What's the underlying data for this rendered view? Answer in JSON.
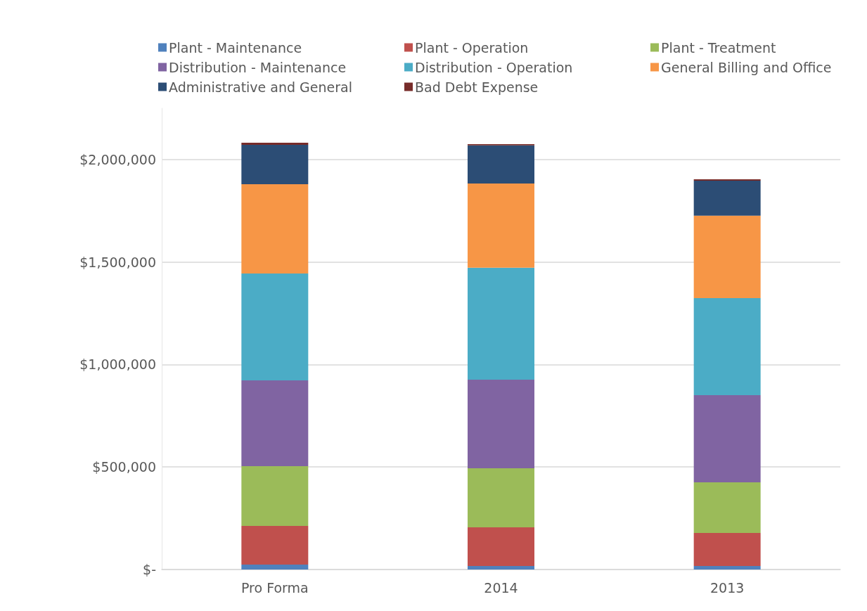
{
  "chart_data": {
    "type": "bar",
    "stacked": true,
    "categories": [
      "Pro Forma",
      "2014",
      "2013"
    ],
    "series": [
      {
        "name": "Plant - Maintenance",
        "color": "#4f81bd",
        "values": [
          24000,
          17000,
          17000
        ]
      },
      {
        "name": "Plant - Operation",
        "color": "#c0504d",
        "values": [
          189000,
          189000,
          161000
        ]
      },
      {
        "name": "Plant - Treatment",
        "color": "#9bbb59",
        "values": [
          291000,
          288000,
          247000
        ]
      },
      {
        "name": "Distribution - Maintenance",
        "color": "#8064a2",
        "values": [
          419000,
          432000,
          426000
        ]
      },
      {
        "name": "Distribution - Operation",
        "color": "#4bacc6",
        "values": [
          521000,
          546000,
          473000
        ]
      },
      {
        "name": "General Billing and Office",
        "color": "#f79646",
        "values": [
          436000,
          411000,
          402000
        ]
      },
      {
        "name": "Administrative and General",
        "color": "#2c4d75",
        "values": [
          192000,
          186000,
          171000
        ]
      },
      {
        "name": "Bad Debt Expense",
        "color": "#772c2a",
        "values": [
          10000,
          6000,
          7000
        ]
      }
    ],
    "ylim": [
      0,
      2250000
    ],
    "yticks": [
      {
        "value": 0,
        "label": "$-"
      },
      {
        "value": 500000,
        "label": "$500,000"
      },
      {
        "value": 1000000,
        "label": "$1,000,000"
      },
      {
        "value": 1500000,
        "label": "$1,500,000"
      },
      {
        "value": 2000000,
        "label": "$2,000,000"
      }
    ],
    "grid": "y",
    "legend": "top"
  }
}
